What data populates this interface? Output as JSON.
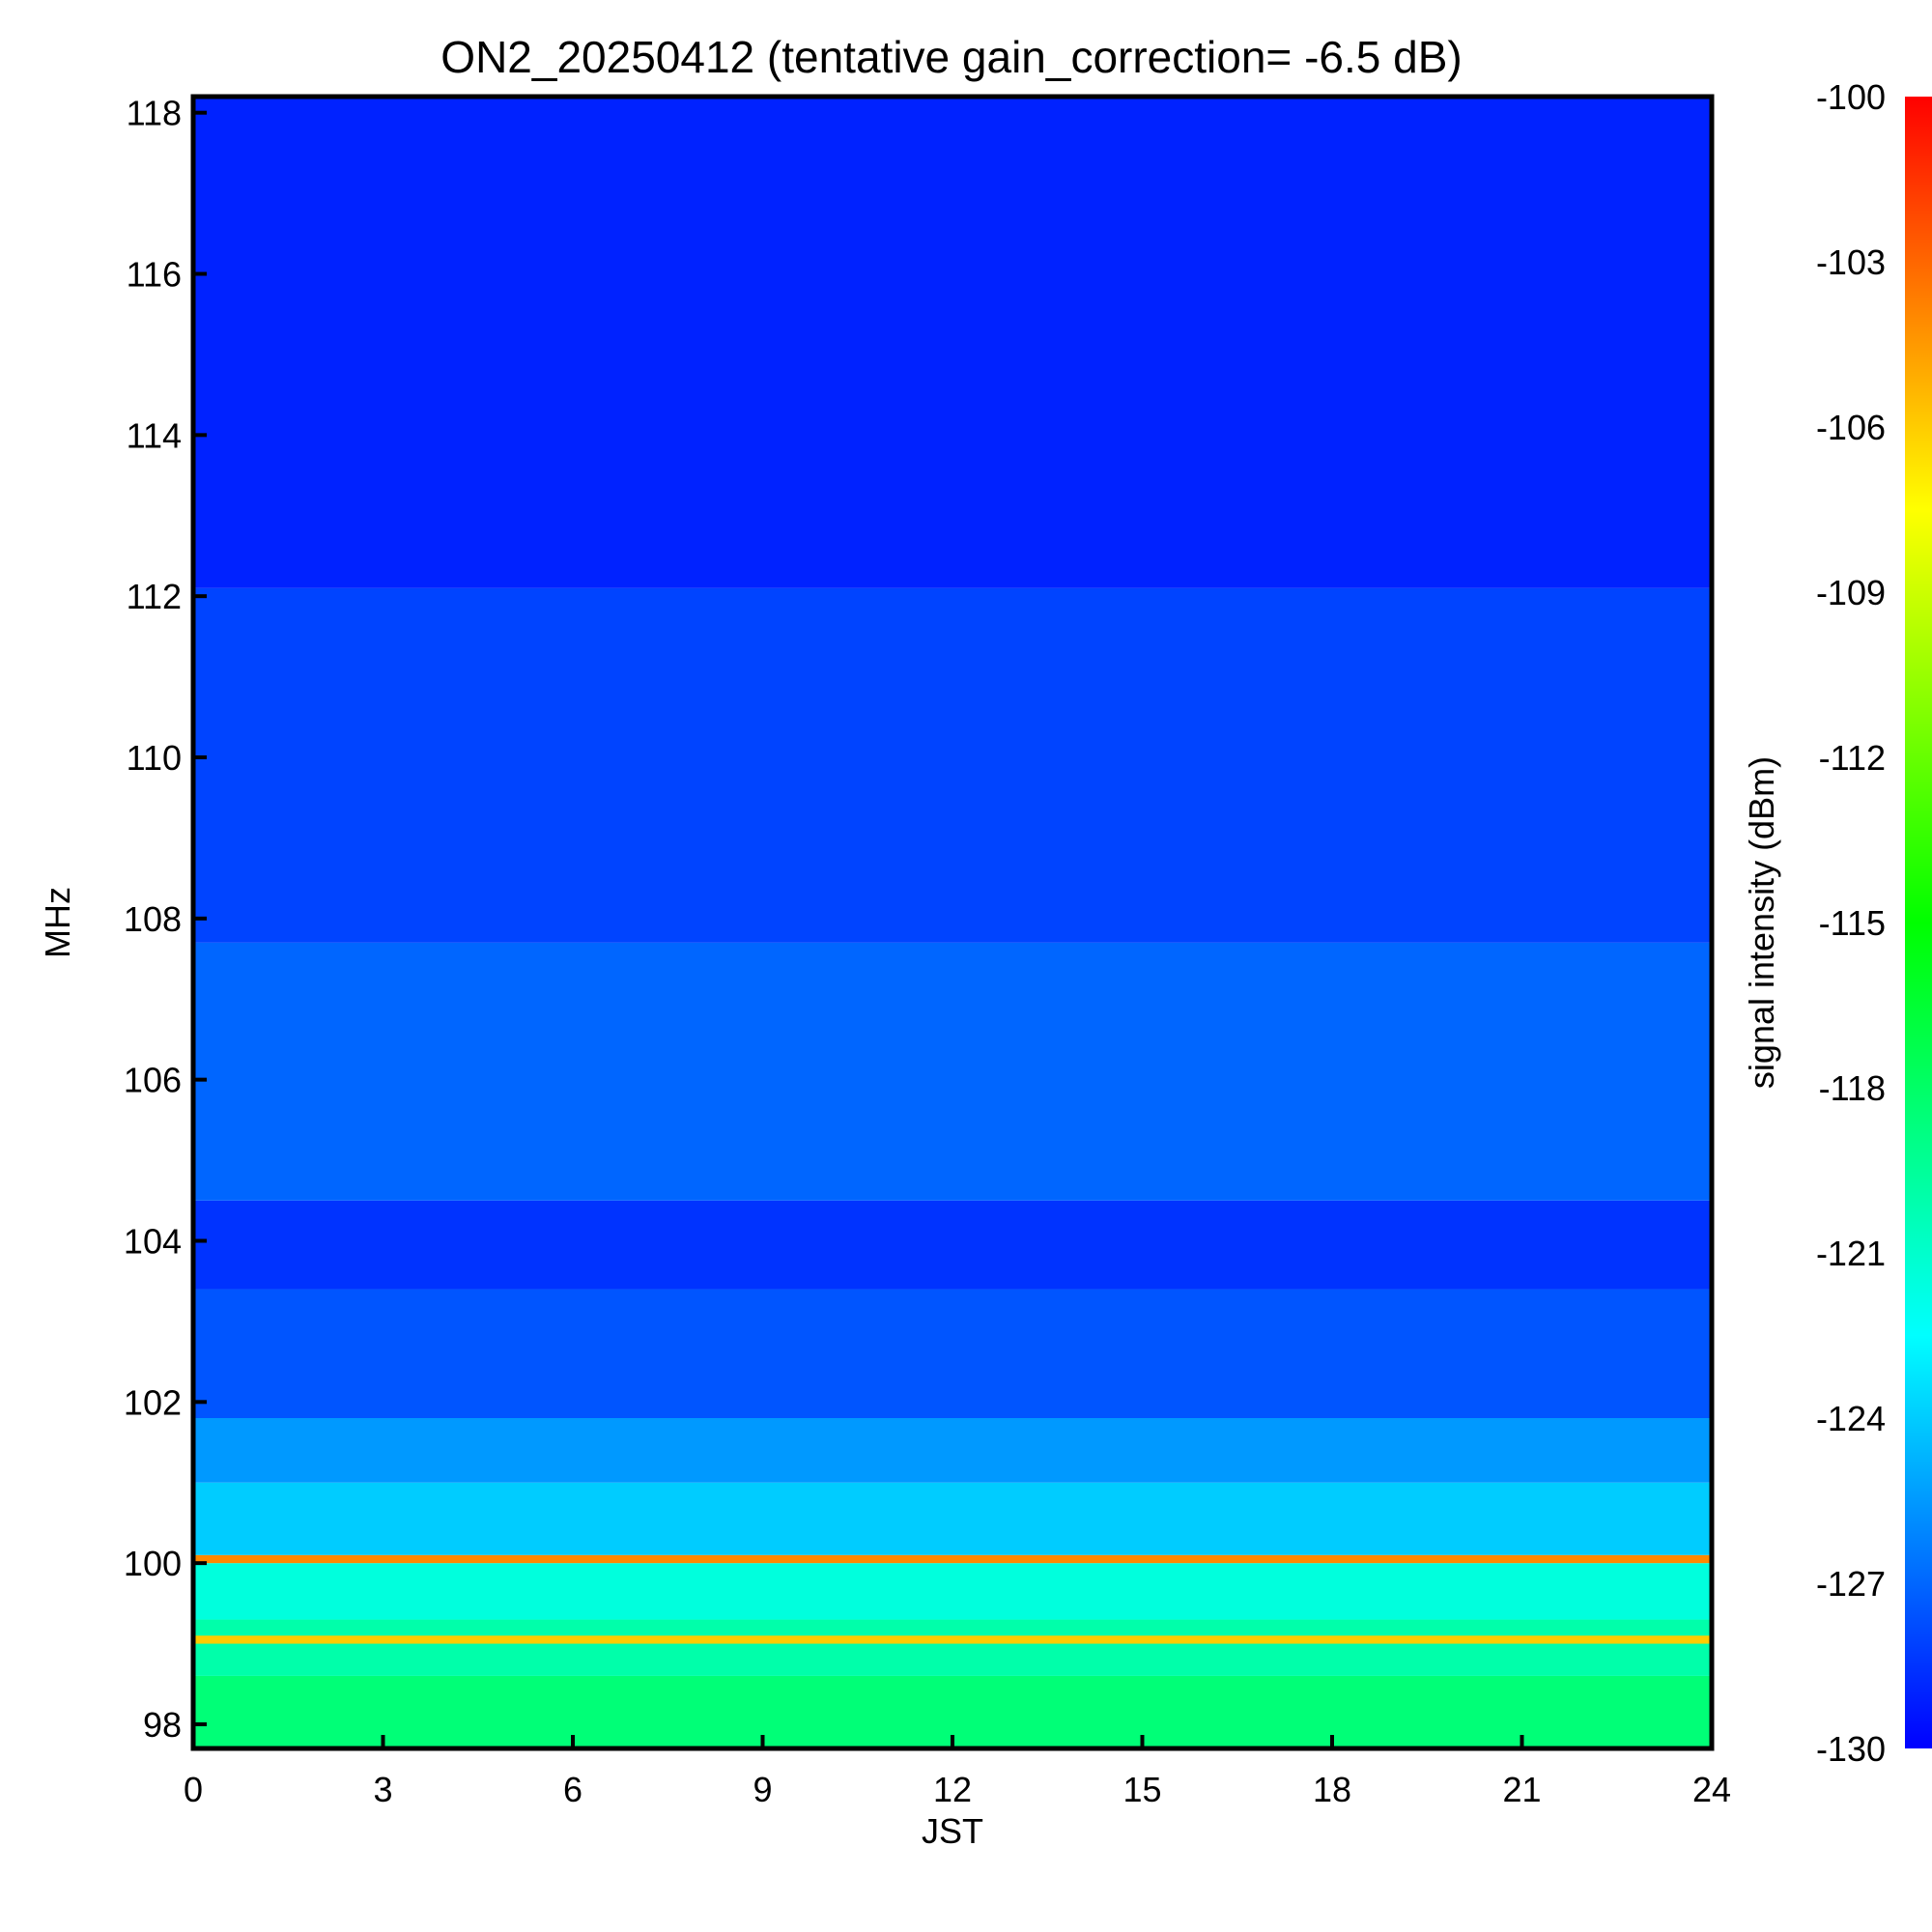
{
  "chart_data": {
    "type": "heatmap",
    "title": "ON2_20250412 (tentative gain_correction= -6.5 dB)",
    "xlabel": "JST",
    "ylabel": "MHz",
    "colorbar_label": "signal intensity (dBm)",
    "xlim": [
      0,
      24
    ],
    "ylim": [
      97.7,
      118.2
    ],
    "x_ticks": [
      "0",
      "3",
      "6",
      "9",
      "12",
      "15",
      "18",
      "21",
      "24"
    ],
    "x_tick_values": [
      0,
      3,
      6,
      9,
      12,
      15,
      18,
      21,
      24
    ],
    "y_ticks": [
      "98",
      "100",
      "102",
      "104",
      "106",
      "108",
      "110",
      "112",
      "114",
      "116",
      "118"
    ],
    "y_tick_values": [
      98,
      100,
      102,
      104,
      106,
      108,
      110,
      112,
      114,
      116,
      118
    ],
    "color_range": [
      -130,
      -100
    ],
    "colorbar_ticks": [
      "-100",
      "-103",
      "-106",
      "-109",
      "-112",
      "-115",
      "-118",
      "-121",
      "-124",
      "-127",
      "-130"
    ],
    "colorbar_tick_values": [
      -100,
      -103,
      -106,
      -109,
      -112,
      -115,
      -118,
      -121,
      -124,
      -127,
      -130
    ],
    "colormap": [
      "#0000ff",
      "#0080ff",
      "#00ffff",
      "#00ff80",
      "#00ff00",
      "#80ff00",
      "#ffff00",
      "#ff8000",
      "#ff0000"
    ],
    "grid": false,
    "bands": [
      {
        "f_min": 97.7,
        "f_max": 98.6,
        "dbm": -118.5
      },
      {
        "f_min": 98.6,
        "f_max": 99.3,
        "dbm": -120.0
      },
      {
        "f_min": 99.0,
        "f_max": 99.1,
        "dbm": -106.0
      },
      {
        "f_min": 99.3,
        "f_max": 100.0,
        "dbm": -121.5
      },
      {
        "f_min": 100.0,
        "f_max": 100.1,
        "dbm": -104.0
      },
      {
        "f_min": 100.1,
        "f_max": 101.0,
        "dbm": -124.0
      },
      {
        "f_min": 101.0,
        "f_max": 101.8,
        "dbm": -125.5
      },
      {
        "f_min": 101.8,
        "f_max": 103.4,
        "dbm": -127.5
      },
      {
        "f_min": 103.4,
        "f_max": 104.5,
        "dbm": -128.5
      },
      {
        "f_min": 104.5,
        "f_max": 107.7,
        "dbm": -127.0
      },
      {
        "f_min": 107.7,
        "f_max": 112.1,
        "dbm": -128.0
      },
      {
        "f_min": 112.1,
        "f_max": 118.2,
        "dbm": -129.0
      }
    ]
  }
}
